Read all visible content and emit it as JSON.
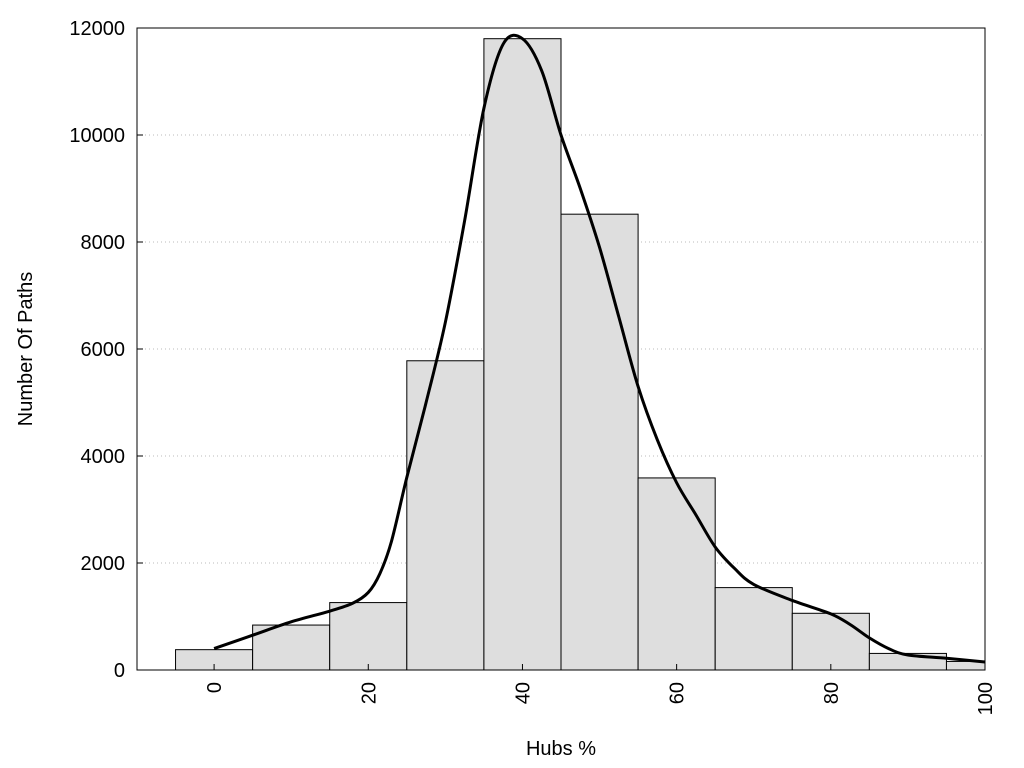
{
  "chart_data": {
    "type": "bar",
    "xlabel": "Hubs %",
    "ylabel": "Number Of Paths",
    "xlim": [
      -10,
      100
    ],
    "ylim": [
      0,
      12000
    ],
    "grid": "horizontal dotted",
    "x_ticks": [
      "0",
      "20",
      "40",
      "60",
      "80",
      "100"
    ],
    "y_ticks": [
      "0",
      "2000",
      "4000",
      "6000",
      "8000",
      "10000",
      "12000"
    ],
    "bar_width": 10,
    "bars": [
      {
        "x": 0,
        "value": 380
      },
      {
        "x": 10,
        "value": 840
      },
      {
        "x": 20,
        "value": 1260
      },
      {
        "x": 30,
        "value": 5780
      },
      {
        "x": 40,
        "value": 11800
      },
      {
        "x": 50,
        "value": 8520
      },
      {
        "x": 60,
        "value": 3590
      },
      {
        "x": 70,
        "value": 1540
      },
      {
        "x": 80,
        "value": 1060
      },
      {
        "x": 90,
        "value": 310
      },
      {
        "x": 100,
        "value": 160
      }
    ],
    "curve": {
      "x": [
        0,
        5,
        10,
        15,
        18,
        20,
        21.5,
        23,
        25,
        27.5,
        30,
        32.5,
        35,
        37.5,
        40,
        42.5,
        45,
        47.5,
        50,
        52.5,
        55,
        57.5,
        60,
        62.5,
        65,
        67.5,
        70,
        75,
        80,
        82.5,
        85,
        87.5,
        90,
        95,
        100
      ],
      "y": [
        400,
        650,
        900,
        1100,
        1250,
        1450,
        1800,
        2400,
        3600,
        5000,
        6500,
        8400,
        10500,
        11700,
        11800,
        11200,
        10000,
        9000,
        7900,
        6600,
        5300,
        4300,
        3500,
        2900,
        2300,
        1900,
        1600,
        1300,
        1050,
        850,
        600,
        400,
        280,
        220,
        150
      ],
      "color": "#000000"
    },
    "bar_color": "#dedede",
    "bar_stroke": "#000000"
  }
}
